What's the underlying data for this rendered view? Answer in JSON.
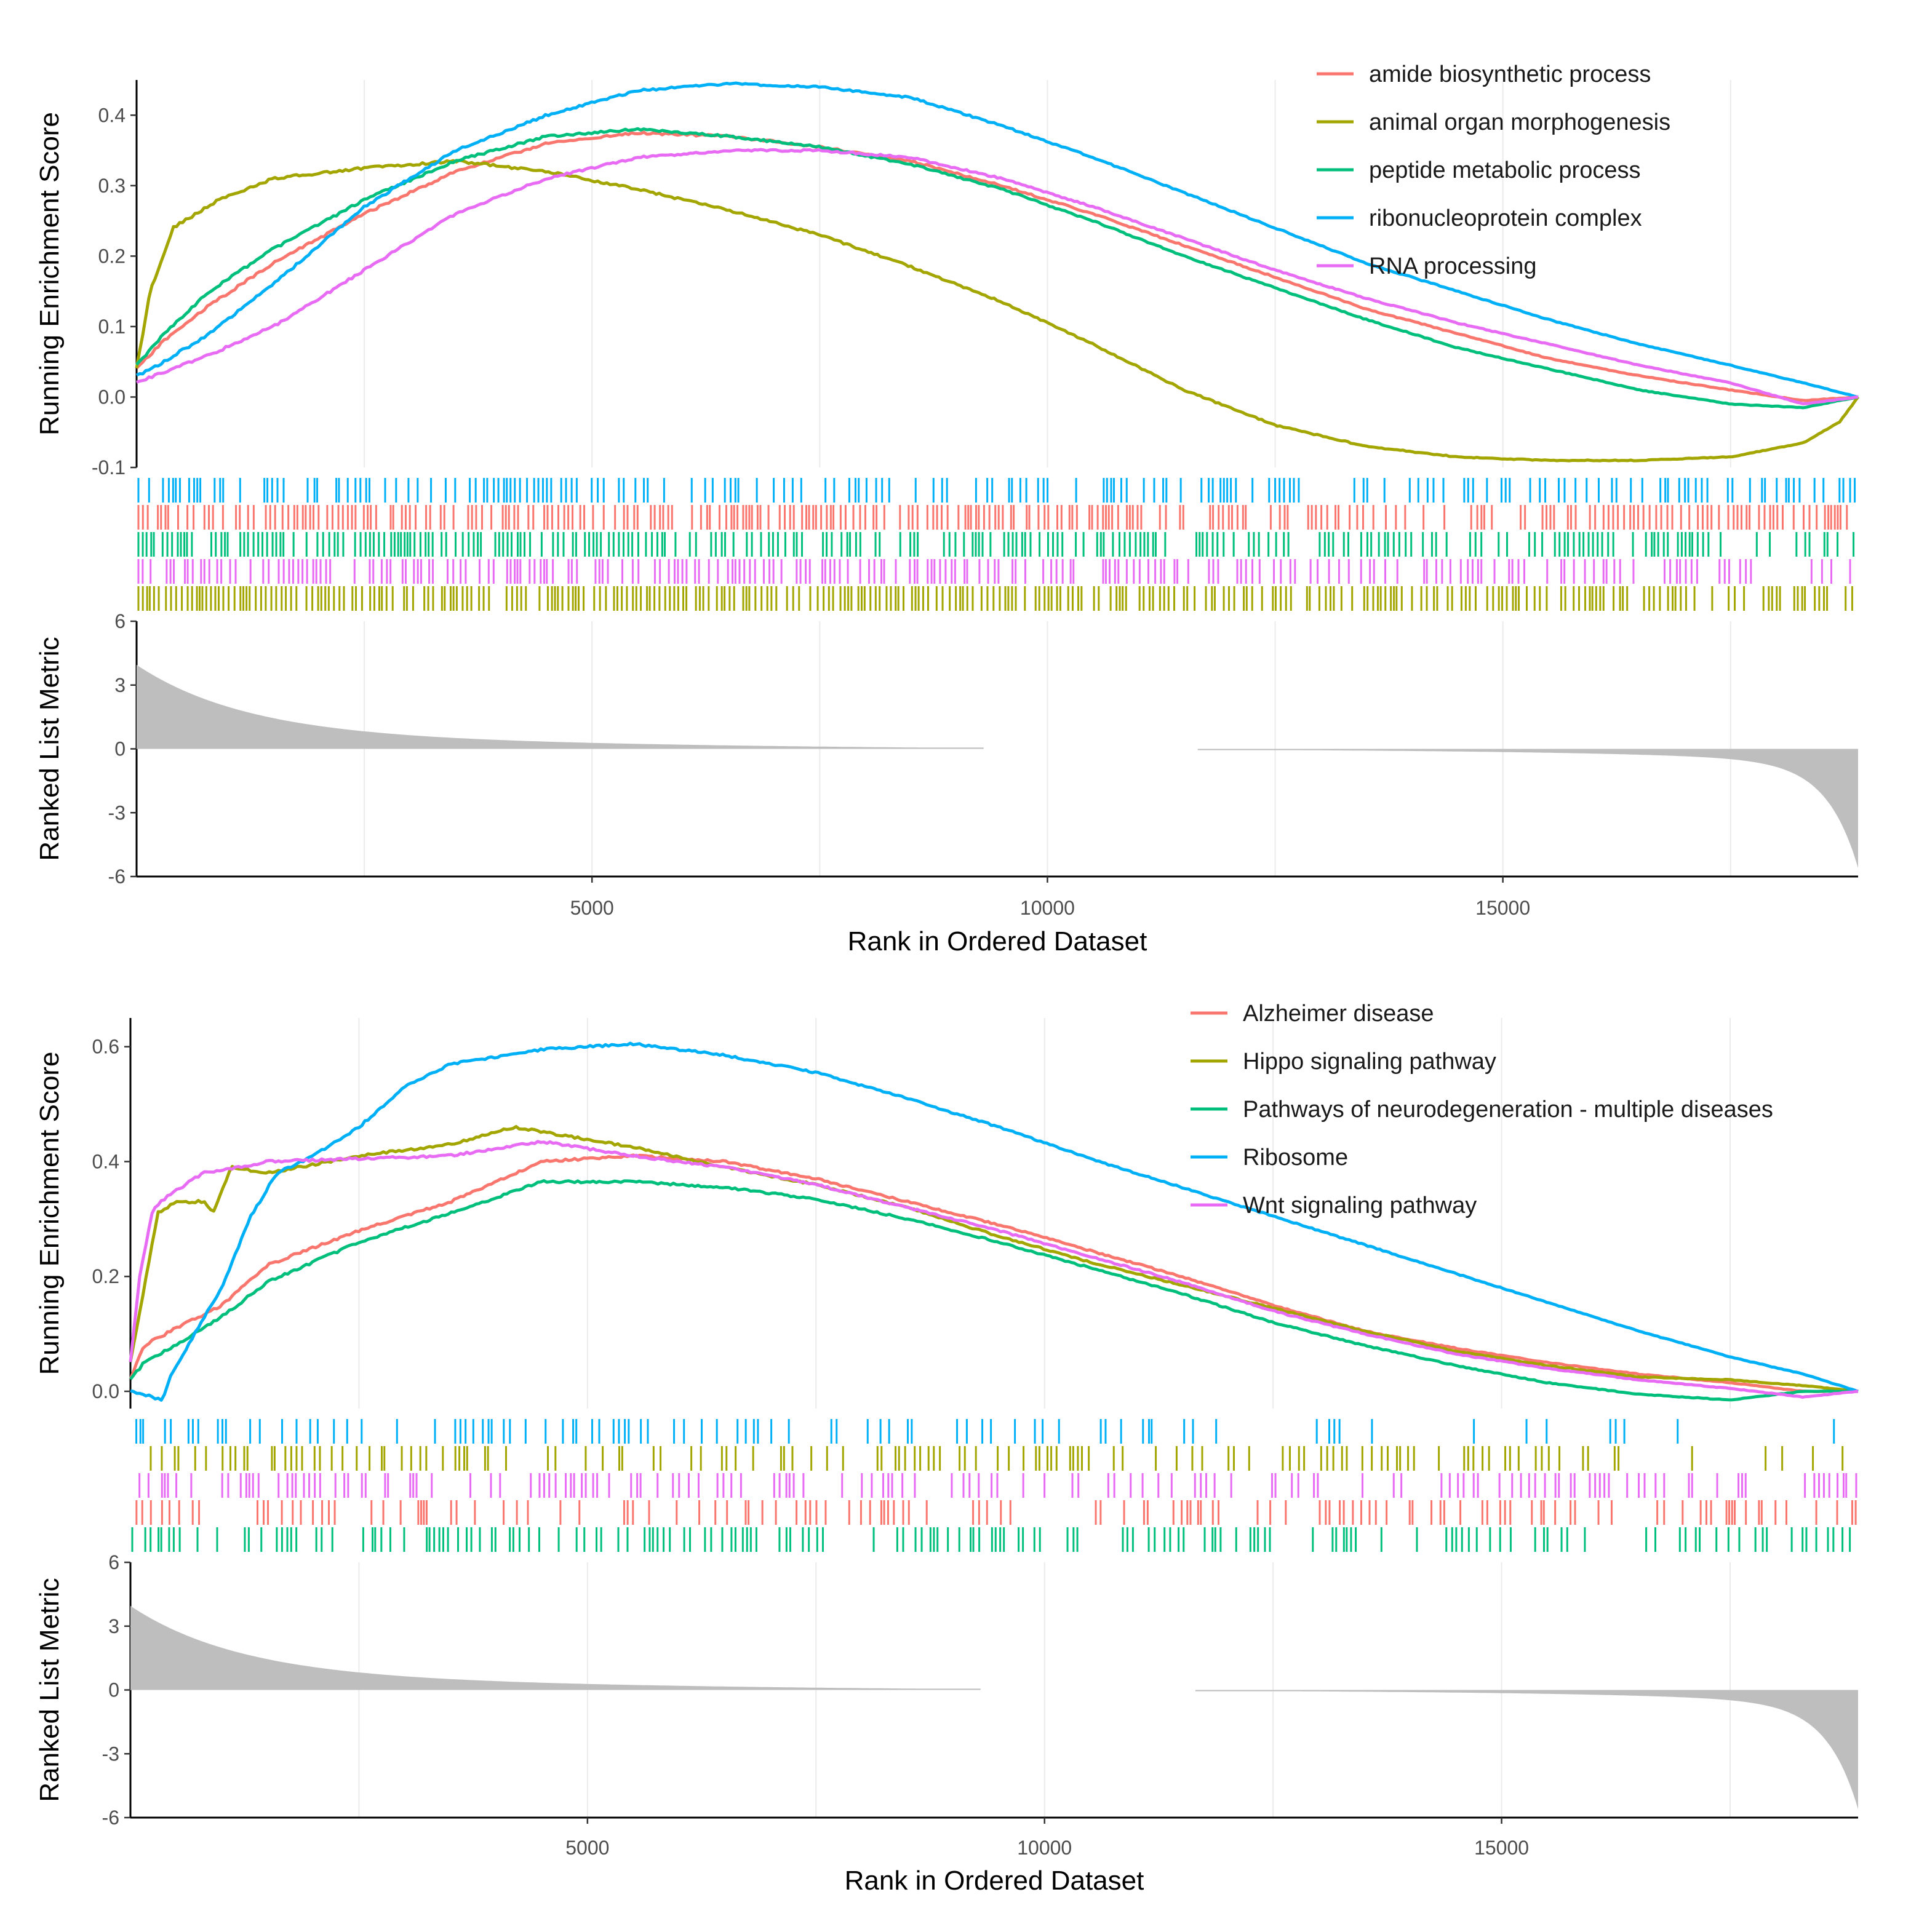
{
  "chart_data": [
    {
      "type": "line",
      "panel": "top",
      "xlabel": "Rank in Ordered Dataset",
      "ylabel_es": "Running Enrichment Score",
      "ylabel_metric": "Ranked List Metric",
      "xlim": [
        0,
        18900
      ],
      "x_ticks": [
        5000,
        10000,
        15000
      ],
      "es_ylim": [
        -0.1,
        0.45
      ],
      "es_ticks": [
        -0.1,
        0.0,
        0.1,
        0.2,
        0.3,
        0.4
      ],
      "es_tick_labels": [
        "-0.1",
        "0.0",
        "0.1",
        "0.2",
        "0.3",
        "0.4"
      ],
      "metric_ylim": [
        -6,
        6
      ],
      "metric_ticks": [
        -6,
        -3,
        0,
        3,
        6
      ],
      "metric_tick_labels": [
        "-6",
        "-3",
        "0",
        "3",
        "6"
      ],
      "legend_position": "top-right",
      "rug_order": [
        "ribonucleoprotein complex",
        "amide biosynthetic process",
        "peptide metabolic process",
        "RNA processing",
        "animal organ morphogenesis"
      ],
      "series": [
        {
          "name": "amide biosynthetic process",
          "color": "#F8766D",
          "seed": 11,
          "x": [
            0,
            300,
            800,
            1500,
            2500,
            3500,
            4500,
            5500,
            6500,
            7500,
            8500,
            9500,
            10500,
            11500,
            12500,
            13500,
            14500,
            15500,
            16500,
            17500,
            18300,
            18900
          ],
          "values": [
            0.04,
            0.08,
            0.13,
            0.19,
            0.26,
            0.32,
            0.36,
            0.375,
            0.37,
            0.355,
            0.335,
            0.3,
            0.26,
            0.215,
            0.17,
            0.125,
            0.09,
            0.055,
            0.03,
            0.01,
            -0.005,
            0.0
          ]
        },
        {
          "name": "animal organ morphogenesis",
          "color": "#A3A500",
          "seed": 22,
          "x": [
            0,
            150,
            400,
            900,
            1500,
            2500,
            3500,
            4500,
            5500,
            6500,
            7500,
            8500,
            9500,
            10500,
            11500,
            12500,
            13500,
            14500,
            15500,
            16500,
            17500,
            18300,
            18700,
            18900
          ],
          "values": [
            0.04,
            0.15,
            0.24,
            0.28,
            0.31,
            0.325,
            0.335,
            0.32,
            0.295,
            0.265,
            0.23,
            0.185,
            0.135,
            0.075,
            0.01,
            -0.04,
            -0.07,
            -0.085,
            -0.09,
            -0.09,
            -0.085,
            -0.065,
            -0.035,
            0.0
          ]
        },
        {
          "name": "peptide metabolic process",
          "color": "#00BF7D",
          "seed": 33,
          "x": [
            0,
            300,
            800,
            1500,
            2500,
            3500,
            4500,
            5500,
            6500,
            7500,
            8500,
            9500,
            10500,
            11500,
            12500,
            13500,
            14500,
            15500,
            16500,
            17500,
            18300,
            18900
          ],
          "values": [
            0.045,
            0.09,
            0.15,
            0.21,
            0.28,
            0.335,
            0.37,
            0.38,
            0.37,
            0.355,
            0.33,
            0.295,
            0.25,
            0.2,
            0.155,
            0.11,
            0.07,
            0.04,
            0.01,
            -0.01,
            -0.015,
            0.0
          ]
        },
        {
          "name": "ribonucleoprotein complex",
          "color": "#00B0F6",
          "seed": 44,
          "x": [
            0,
            300,
            800,
            1500,
            2500,
            3500,
            4500,
            5500,
            6500,
            7500,
            8500,
            9500,
            10500,
            11500,
            12500,
            13500,
            14500,
            15500,
            16500,
            17500,
            18300,
            18900
          ],
          "values": [
            0.03,
            0.05,
            0.09,
            0.16,
            0.27,
            0.35,
            0.4,
            0.435,
            0.445,
            0.44,
            0.425,
            0.385,
            0.34,
            0.29,
            0.24,
            0.19,
            0.15,
            0.11,
            0.075,
            0.045,
            0.02,
            0.0
          ]
        },
        {
          "name": "RNA processing",
          "color": "#E76BF3",
          "seed": 55,
          "x": [
            0,
            300,
            800,
            1500,
            2500,
            3500,
            4500,
            5500,
            6500,
            7500,
            8500,
            9500,
            10500,
            11500,
            12500,
            13500,
            14500,
            15500,
            16500,
            17500,
            18300,
            18900
          ],
          "values": [
            0.02,
            0.035,
            0.06,
            0.1,
            0.18,
            0.26,
            0.31,
            0.34,
            0.35,
            0.35,
            0.34,
            0.31,
            0.27,
            0.225,
            0.18,
            0.14,
            0.105,
            0.075,
            0.045,
            0.02,
            -0.01,
            0.0
          ]
        }
      ]
    },
    {
      "type": "line",
      "panel": "bottom",
      "xlabel": "Rank in Ordered Dataset",
      "ylabel_es": "Running Enrichment Score",
      "ylabel_metric": "Ranked List Metric",
      "xlim": [
        0,
        18900
      ],
      "x_ticks": [
        5000,
        10000,
        15000
      ],
      "es_ylim": [
        -0.03,
        0.65
      ],
      "es_ticks": [
        0.0,
        0.2,
        0.4,
        0.6
      ],
      "es_tick_labels": [
        "0.0",
        "0.2",
        "0.4",
        "0.6"
      ],
      "metric_ylim": [
        -6,
        6
      ],
      "metric_ticks": [
        -6,
        -3,
        0,
        3,
        6
      ],
      "metric_tick_labels": [
        "-6",
        "-3",
        "0",
        "3",
        "6"
      ],
      "legend_position": "top-right",
      "rug_order": [
        "Ribosome",
        "Hippo signaling pathway",
        "Wnt signaling pathway",
        "Alzheimer disease",
        "Pathways of neurodegeneration - multiple diseases"
      ],
      "series": [
        {
          "name": "Alzheimer disease",
          "color": "#F8766D",
          "seed": 66,
          "x": [
            0,
            150,
            500,
            1000,
            1500,
            2500,
            3500,
            4500,
            5500,
            6500,
            7500,
            8500,
            9500,
            10500,
            11500,
            12500,
            13500,
            14500,
            15500,
            16500,
            17500,
            18300,
            18900
          ],
          "values": [
            0.02,
            0.08,
            0.11,
            0.15,
            0.22,
            0.28,
            0.33,
            0.4,
            0.41,
            0.4,
            0.37,
            0.33,
            0.29,
            0.245,
            0.2,
            0.15,
            0.105,
            0.075,
            0.05,
            0.03,
            0.015,
            0.0,
            0.0
          ]
        },
        {
          "name": "Hippo signaling pathway",
          "color": "#A3A500",
          "seed": 77,
          "x": [
            0,
            150,
            300,
            500,
            800,
            900,
            1100,
            1500,
            2500,
            3500,
            4200,
            5500,
            6500,
            7500,
            8500,
            9500,
            10500,
            11500,
            12500,
            13500,
            14500,
            15500,
            16500,
            17500,
            18300,
            18900
          ],
          "values": [
            0.05,
            0.18,
            0.31,
            0.33,
            0.33,
            0.31,
            0.39,
            0.38,
            0.41,
            0.43,
            0.46,
            0.425,
            0.39,
            0.36,
            0.32,
            0.27,
            0.225,
            0.185,
            0.145,
            0.105,
            0.07,
            0.045,
            0.025,
            0.02,
            0.01,
            0.0
          ]
        },
        {
          "name": "Pathways of neurodegeneration - multiple diseases",
          "color": "#00BF7D",
          "seed": 88,
          "x": [
            0,
            150,
            500,
            1000,
            1500,
            2500,
            3500,
            4500,
            5500,
            6500,
            7500,
            8500,
            9500,
            10500,
            11500,
            12500,
            13500,
            14500,
            15500,
            16500,
            17500,
            18300,
            18900
          ],
          "values": [
            0.02,
            0.05,
            0.08,
            0.13,
            0.19,
            0.26,
            0.31,
            0.365,
            0.365,
            0.355,
            0.335,
            0.3,
            0.26,
            0.215,
            0.17,
            0.12,
            0.08,
            0.045,
            0.015,
            -0.005,
            -0.015,
            0.0,
            0.0
          ]
        },
        {
          "name": "Ribosome",
          "color": "#00B0F6",
          "seed": 99,
          "x": [
            0,
            350,
            450,
            700,
            1000,
            1300,
            1600,
            2000,
            2500,
            3000,
            3500,
            4500,
            5500,
            6500,
            7500,
            8500,
            9500,
            10500,
            11500,
            12500,
            13500,
            14500,
            15500,
            16500,
            17500,
            18300,
            18900
          ],
          "values": [
            0.0,
            -0.015,
            0.03,
            0.1,
            0.18,
            0.3,
            0.38,
            0.41,
            0.46,
            0.53,
            0.57,
            0.595,
            0.605,
            0.585,
            0.555,
            0.51,
            0.46,
            0.405,
            0.355,
            0.305,
            0.255,
            0.205,
            0.155,
            0.105,
            0.06,
            0.03,
            0.0
          ]
        },
        {
          "name": "Wnt signaling pathway",
          "color": "#E76BF3",
          "seed": 111,
          "x": [
            0,
            100,
            250,
            500,
            800,
            1200,
            1500,
            2500,
            3500,
            4500,
            5500,
            6500,
            7500,
            8500,
            9500,
            10500,
            11500,
            12500,
            13500,
            14500,
            15500,
            16500,
            17500,
            18300,
            18900
          ],
          "values": [
            0.05,
            0.2,
            0.32,
            0.35,
            0.38,
            0.39,
            0.4,
            0.405,
            0.41,
            0.435,
            0.41,
            0.39,
            0.36,
            0.32,
            0.28,
            0.235,
            0.19,
            0.14,
            0.1,
            0.065,
            0.04,
            0.02,
            0.005,
            -0.01,
            0.0
          ]
        }
      ]
    }
  ]
}
